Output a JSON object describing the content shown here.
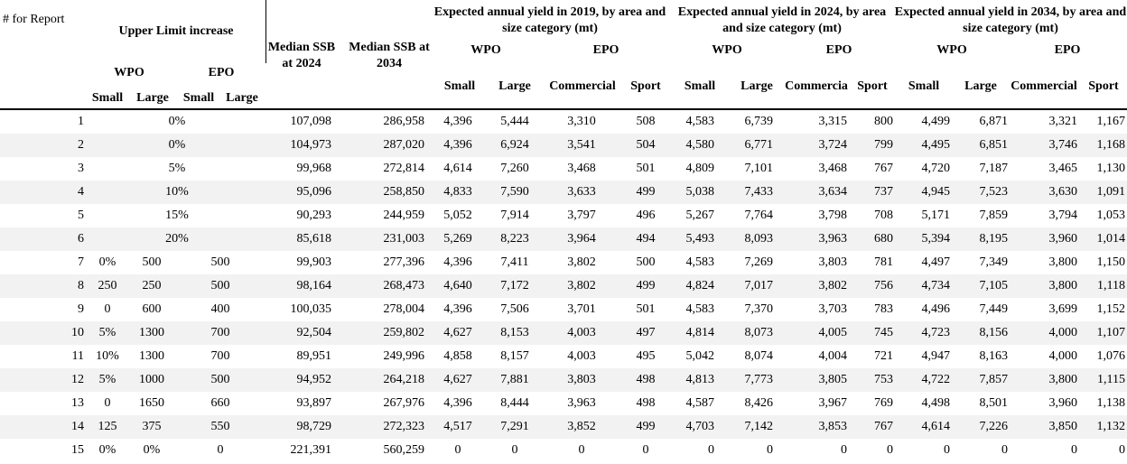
{
  "header": {
    "report": "# for Report",
    "upper_limit": "Upper Limit increase",
    "wpo": "WPO",
    "epo": "EPO",
    "small": "Small",
    "large": "Large",
    "ssb2024": "Median SSB at 2024",
    "ssb2034": "Median SSB at 2034",
    "y2019": "Expected annual yield in 2019, by area and size category (mt)",
    "y2024": "Expected annual yield in 2024, by area and size category (mt)",
    "y2034": "Expected annual yield in 2034, by area and size category (mt)",
    "commercial": "Commercial",
    "commercial_clipped": "Commercia",
    "sport": "Sport"
  },
  "rows": [
    {
      "n": "1",
      "wpo_small": "",
      "wpo_large": "",
      "epo_small": "",
      "epo_large": "",
      "span": "0%",
      "ssb24": "107,098",
      "ssb34": "286,958",
      "y19": [
        "4,396",
        "5,444",
        "3,310",
        "508"
      ],
      "y24": [
        "4,583",
        "6,739",
        "3,315",
        "800"
      ],
      "y34": [
        "4,499",
        "6,871",
        "3,321",
        "1,167"
      ]
    },
    {
      "n": "2",
      "wpo_small": "",
      "wpo_large": "",
      "epo_small": "",
      "epo_large": "",
      "span": "0%",
      "ssb24": "104,973",
      "ssb34": "287,020",
      "y19": [
        "4,396",
        "6,924",
        "3,541",
        "504"
      ],
      "y24": [
        "4,580",
        "6,771",
        "3,724",
        "799"
      ],
      "y34": [
        "4,495",
        "6,851",
        "3,746",
        "1,168"
      ]
    },
    {
      "n": "3",
      "wpo_small": "",
      "wpo_large": "",
      "epo_small": "",
      "epo_large": "",
      "span": "5%",
      "ssb24": "99,968",
      "ssb34": "272,814",
      "y19": [
        "4,614",
        "7,260",
        "3,468",
        "501"
      ],
      "y24": [
        "4,809",
        "7,101",
        "3,468",
        "767"
      ],
      "y34": [
        "4,720",
        "7,187",
        "3,465",
        "1,130"
      ]
    },
    {
      "n": "4",
      "wpo_small": "",
      "wpo_large": "",
      "epo_small": "",
      "epo_large": "",
      "span": "10%",
      "ssb24": "95,096",
      "ssb34": "258,850",
      "y19": [
        "4,833",
        "7,590",
        "3,633",
        "499"
      ],
      "y24": [
        "5,038",
        "7,433",
        "3,634",
        "737"
      ],
      "y34": [
        "4,945",
        "7,523",
        "3,630",
        "1,091"
      ]
    },
    {
      "n": "5",
      "wpo_small": "",
      "wpo_large": "",
      "epo_small": "",
      "epo_large": "",
      "span": "15%",
      "ssb24": "90,293",
      "ssb34": "244,959",
      "y19": [
        "5,052",
        "7,914",
        "3,797",
        "496"
      ],
      "y24": [
        "5,267",
        "7,764",
        "3,798",
        "708"
      ],
      "y34": [
        "5,171",
        "7,859",
        "3,794",
        "1,053"
      ]
    },
    {
      "n": "6",
      "wpo_small": "",
      "wpo_large": "",
      "epo_small": "",
      "epo_large": "",
      "span": "20%",
      "ssb24": "85,618",
      "ssb34": "231,003",
      "y19": [
        "5,269",
        "8,223",
        "3,964",
        "494"
      ],
      "y24": [
        "5,493",
        "8,093",
        "3,963",
        "680"
      ],
      "y34": [
        "5,394",
        "8,195",
        "3,960",
        "1,014"
      ]
    },
    {
      "n": "7",
      "wpo_small": "0%",
      "wpo_large": "500",
      "epo_small": "",
      "epo_large": "500",
      "span": "",
      "ssb24": "99,903",
      "ssb34": "277,396",
      "y19": [
        "4,396",
        "7,411",
        "3,802",
        "500"
      ],
      "y24": [
        "4,583",
        "7,269",
        "3,803",
        "781"
      ],
      "y34": [
        "4,497",
        "7,349",
        "3,800",
        "1,150"
      ]
    },
    {
      "n": "8",
      "wpo_small": "250",
      "wpo_large": "250",
      "epo_small": "",
      "epo_large": "500",
      "span": "",
      "ssb24": "98,164",
      "ssb34": "268,473",
      "y19": [
        "4,640",
        "7,172",
        "3,802",
        "499"
      ],
      "y24": [
        "4,824",
        "7,017",
        "3,802",
        "756"
      ],
      "y34": [
        "4,734",
        "7,105",
        "3,800",
        "1,118"
      ]
    },
    {
      "n": "9",
      "wpo_small": "0",
      "wpo_large": "600",
      "epo_small": "",
      "epo_large": "400",
      "span": "",
      "ssb24": "100,035",
      "ssb34": "278,004",
      "y19": [
        "4,396",
        "7,506",
        "3,701",
        "501"
      ],
      "y24": [
        "4,583",
        "7,370",
        "3,703",
        "783"
      ],
      "y34": [
        "4,496",
        "7,449",
        "3,699",
        "1,152"
      ]
    },
    {
      "n": "10",
      "wpo_small": "5%",
      "wpo_large": "1300",
      "epo_small": "",
      "epo_large": "700",
      "span": "",
      "ssb24": "92,504",
      "ssb34": "259,802",
      "y19": [
        "4,627",
        "8,153",
        "4,003",
        "497"
      ],
      "y24": [
        "4,814",
        "8,073",
        "4,005",
        "745"
      ],
      "y34": [
        "4,723",
        "8,156",
        "4,000",
        "1,107"
      ]
    },
    {
      "n": "11",
      "wpo_small": "10%",
      "wpo_large": "1300",
      "epo_small": "",
      "epo_large": "700",
      "span": "",
      "ssb24": "89,951",
      "ssb34": "249,996",
      "y19": [
        "4,858",
        "8,157",
        "4,003",
        "495"
      ],
      "y24": [
        "5,042",
        "8,074",
        "4,004",
        "721"
      ],
      "y34": [
        "4,947",
        "8,163",
        "4,000",
        "1,076"
      ]
    },
    {
      "n": "12",
      "wpo_small": "5%",
      "wpo_large": "1000",
      "epo_small": "",
      "epo_large": "500",
      "span": "",
      "ssb24": "94,952",
      "ssb34": "264,218",
      "y19": [
        "4,627",
        "7,881",
        "3,803",
        "498"
      ],
      "y24": [
        "4,813",
        "7,773",
        "3,805",
        "753"
      ],
      "y34": [
        "4,722",
        "7,857",
        "3,800",
        "1,115"
      ]
    },
    {
      "n": "13",
      "wpo_small": "0",
      "wpo_large": "1650",
      "epo_small": "",
      "epo_large": "660",
      "span": "",
      "ssb24": "93,897",
      "ssb34": "267,976",
      "y19": [
        "4,396",
        "8,444",
        "3,963",
        "498"
      ],
      "y24": [
        "4,587",
        "8,426",
        "3,967",
        "769"
      ],
      "y34": [
        "4,498",
        "8,501",
        "3,960",
        "1,138"
      ]
    },
    {
      "n": "14",
      "wpo_small": "125",
      "wpo_large": "375",
      "epo_small": "",
      "epo_large": "550",
      "span": "",
      "ssb24": "98,729",
      "ssb34": "272,323",
      "y19": [
        "4,517",
        "7,291",
        "3,852",
        "499"
      ],
      "y24": [
        "4,703",
        "7,142",
        "3,853",
        "767"
      ],
      "y34": [
        "4,614",
        "7,226",
        "3,850",
        "1,132"
      ]
    },
    {
      "n": "15",
      "wpo_small": "0%",
      "wpo_large": "0%",
      "epo_small": "",
      "epo_large": "0",
      "span": "",
      "ssb24": "221,391",
      "ssb34": "560,259",
      "y19": [
        "0",
        "0",
        "0",
        "0"
      ],
      "y24": [
        "0",
        "0",
        "0",
        "0"
      ],
      "y34": [
        "0",
        "0",
        "0",
        "0"
      ]
    }
  ]
}
